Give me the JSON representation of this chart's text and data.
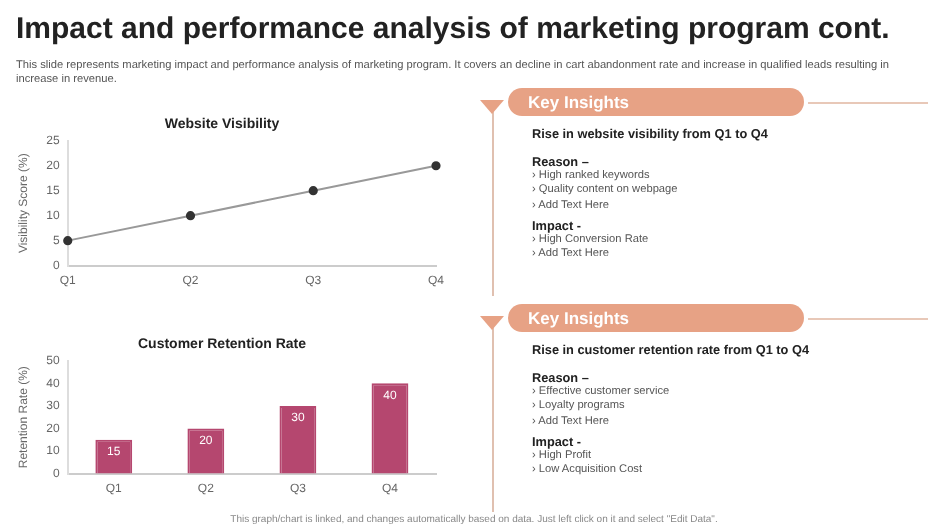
{
  "chart_data": [
    {
      "type": "other",
      "title": "Impact and performance analysis of marketing program cont.",
      "subtitle": "This slide represents marketing impact and performance analysis of marketing program. It covers an decline in cart abandonment rate and increase in qualified leads resulting in increase in revenue.",
      "annotations": [
        "This graph/chart is linked, and changes automatically based on data. Just left click on it and select \"Edit Data\"."
      ]
    },
    {
      "type": "line",
      "title": "Website Visibility",
      "ylabel": "Visibility Score (%)",
      "categories": [
        "Q1",
        "Q2",
        "Q3",
        "Q4"
      ],
      "series": [
        {
          "color": "#333333",
          "values": [
            5,
            10,
            15,
            20
          ]
        }
      ],
      "ylim": [
        0,
        25
      ],
      "yticks": [
        0,
        5,
        10,
        15,
        20,
        25
      ],
      "grid": false,
      "legend": false,
      "marker": "circle",
      "line_style": "solid"
    },
    {
      "type": "other",
      "title": "Key Insights",
      "subtitle": "Rise in website visibility  from Q1 to Q4",
      "annotations": [
        "Reason –",
        "› High ranked keywords",
        "› Quality content on webpage",
        "› Add Text Here",
        "Impact -",
        "› High Conversion Rate",
        "› Add Text Here"
      ]
    },
    {
      "type": "bar",
      "title": "Customer Retention Rate",
      "ylabel": "Retention Rate (%)",
      "categories": [
        "Q1",
        "Q2",
        "Q3",
        "Q4"
      ],
      "series": [
        {
          "color": "#b5476f",
          "values": [
            15,
            20,
            30,
            40
          ]
        }
      ],
      "ylim": [
        0,
        50
      ],
      "yticks": [
        0,
        10,
        20,
        30,
        40,
        50
      ],
      "grid": false,
      "legend": false,
      "data_labels": true
    },
    {
      "type": "other",
      "title": "Key Insights",
      "subtitle": "Rise in customer retention rate from Q1 to Q4",
      "annotations": [
        "Reason –",
        "› Effective customer service",
        "› Loyalty programs",
        "› Add Text Here",
        "Impact -",
        "› High Profit",
        "› Low Acquisition Cost"
      ]
    }
  ]
}
